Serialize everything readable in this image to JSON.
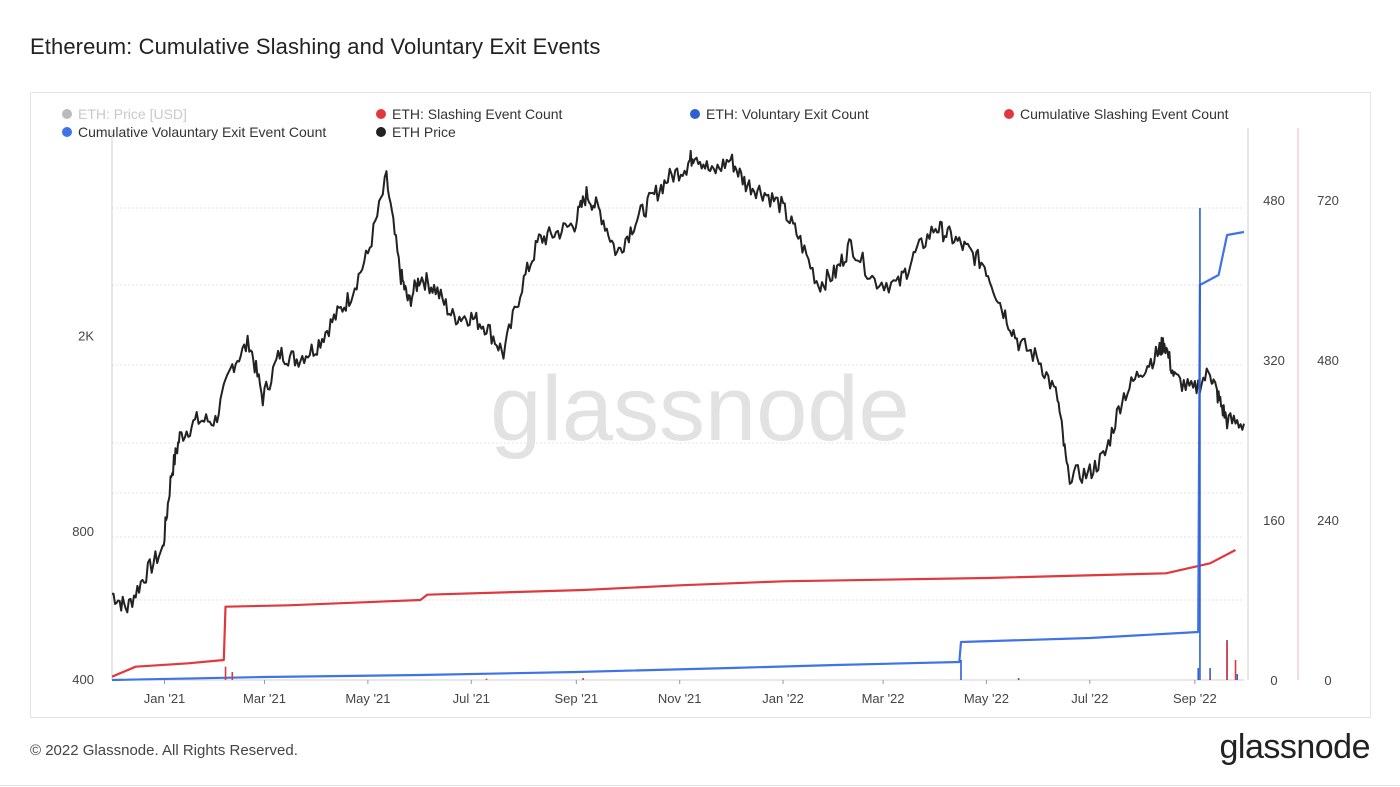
{
  "title": "Ethereum: Cumulative Slashing and Voluntary Exit Events",
  "footer": {
    "copyright": "© 2022 Glassnode. All Rights Reserved.",
    "logo": "glassnode"
  },
  "watermark": "glassnode",
  "legend": [
    {
      "label": "ETH: Price [USD]",
      "color": "#555555",
      "muted": true
    },
    {
      "label": "ETH: Slashing Event Count",
      "color": "#e0383e"
    },
    {
      "label": "ETH: Voluntary Exit Count",
      "color": "#2f5fd0"
    },
    {
      "label": "Cumulative Slashing Event Count",
      "color": "#e0383e"
    },
    {
      "label": "Cumulative Volauntary Exit Event Count",
      "color": "#3f73e8"
    },
    {
      "label": "ETH Price",
      "color": "#222222"
    }
  ],
  "chart_data": {
    "type": "line",
    "title": "Ethereum: Cumulative Slashing and Voluntary Exit Events",
    "x_ticks": [
      "Jan '21",
      "Mar '21",
      "May '21",
      "Jul '21",
      "Sep '21",
      "Nov '21",
      "Jan '22",
      "Mar '22",
      "May '22",
      "Jul '22",
      "Sep '22"
    ],
    "x_range": [
      "2020-12-01",
      "2022-09-30"
    ],
    "y_left": {
      "label": "",
      "scale": "log",
      "ticks": [
        400,
        800,
        "2K"
      ],
      "range": [
        400,
        4800
      ]
    },
    "y_right_1": {
      "label": "",
      "ticks": [
        0,
        160,
        320,
        480
      ],
      "range": [
        0,
        530
      ]
    },
    "y_right_2": {
      "label": "",
      "ticks": [
        0,
        240,
        480,
        720
      ],
      "range": [
        0,
        795
      ]
    },
    "grid": true,
    "legend_position": "top",
    "series": [
      {
        "name": "ETH Price",
        "color": "#222222",
        "axis": "left",
        "points": [
          [
            "2020-12-01",
            600
          ],
          [
            "2020-12-10",
            560
          ],
          [
            "2020-12-20",
            650
          ],
          [
            "2020-12-31",
            740
          ],
          [
            "2021-01-05",
            1050
          ],
          [
            "2021-01-10",
            1250
          ],
          [
            "2021-01-20",
            1350
          ],
          [
            "2021-01-31",
            1350
          ],
          [
            "2021-02-10",
            1750
          ],
          [
            "2021-02-20",
            1950
          ],
          [
            "2021-02-28",
            1500
          ],
          [
            "2021-03-10",
            1850
          ],
          [
            "2021-03-20",
            1800
          ],
          [
            "2021-03-31",
            1900
          ],
          [
            "2021-04-10",
            2150
          ],
          [
            "2021-04-20",
            2400
          ],
          [
            "2021-05-01",
            2950
          ],
          [
            "2021-05-12",
            4200
          ],
          [
            "2021-05-20",
            2700
          ],
          [
            "2021-05-25",
            2350
          ],
          [
            "2021-06-01",
            2650
          ],
          [
            "2021-06-10",
            2500
          ],
          [
            "2021-06-20",
            2200
          ],
          [
            "2021-06-30",
            2200
          ],
          [
            "2021-07-10",
            2100
          ],
          [
            "2021-07-20",
            1850
          ],
          [
            "2021-07-31",
            2550
          ],
          [
            "2021-08-10",
            3150
          ],
          [
            "2021-08-20",
            3250
          ],
          [
            "2021-08-31",
            3400
          ],
          [
            "2021-09-07",
            3900
          ],
          [
            "2021-09-15",
            3600
          ],
          [
            "2021-09-25",
            2950
          ],
          [
            "2021-10-05",
            3400
          ],
          [
            "2021-10-15",
            3800
          ],
          [
            "2021-10-25",
            4200
          ],
          [
            "2021-11-05",
            4450
          ],
          [
            "2021-11-10",
            4750
          ],
          [
            "2021-11-20",
            4300
          ],
          [
            "2021-12-01",
            4600
          ],
          [
            "2021-12-10",
            4100
          ],
          [
            "2021-12-20",
            3950
          ],
          [
            "2021-12-31",
            3700
          ],
          [
            "2022-01-10",
            3200
          ],
          [
            "2022-01-22",
            2550
          ],
          [
            "2022-02-01",
            2700
          ],
          [
            "2022-02-10",
            3100
          ],
          [
            "2022-02-24",
            2600
          ],
          [
            "2022-03-10",
            2550
          ],
          [
            "2022-03-20",
            2950
          ],
          [
            "2022-04-01",
            3350
          ],
          [
            "2022-04-10",
            3200
          ],
          [
            "2022-04-20",
            3000
          ],
          [
            "2022-04-30",
            2800
          ],
          [
            "2022-05-10",
            2300
          ],
          [
            "2022-05-20",
            1950
          ],
          [
            "2022-06-01",
            1800
          ],
          [
            "2022-06-12",
            1500
          ],
          [
            "2022-06-18",
            1050
          ],
          [
            "2022-06-30",
            1050
          ],
          [
            "2022-07-10",
            1150
          ],
          [
            "2022-07-20",
            1500
          ],
          [
            "2022-07-31",
            1700
          ],
          [
            "2022-08-10",
            1850
          ],
          [
            "2022-08-14",
            1950
          ],
          [
            "2022-08-20",
            1650
          ],
          [
            "2022-08-31",
            1550
          ],
          [
            "2022-09-10",
            1700
          ],
          [
            "2022-09-15",
            1500
          ],
          [
            "2022-09-20",
            1350
          ],
          [
            "2022-09-30",
            1330
          ]
        ]
      },
      {
        "name": "Cumulative Slashing Event Count",
        "color": "#e0383e",
        "axis": "right_2",
        "points": [
          [
            "2020-12-01",
            5
          ],
          [
            "2020-12-15",
            20
          ],
          [
            "2021-01-15",
            25
          ],
          [
            "2021-02-05",
            30
          ],
          [
            "2021-02-06",
            110
          ],
          [
            "2021-03-15",
            112
          ],
          [
            "2021-06-01",
            120
          ],
          [
            "2021-06-05",
            128
          ],
          [
            "2021-09-05",
            135
          ],
          [
            "2021-11-01",
            142
          ],
          [
            "2022-01-01",
            148
          ],
          [
            "2022-05-01",
            153
          ],
          [
            "2022-08-15",
            160
          ],
          [
            "2022-09-10",
            175
          ],
          [
            "2022-09-25",
            195
          ]
        ]
      },
      {
        "name": "Cumulative Volauntary Exit Event Count",
        "color": "#3f73e8",
        "axis": "right_1",
        "points": [
          [
            "2020-12-01",
            0
          ],
          [
            "2021-03-01",
            3
          ],
          [
            "2021-06-01",
            5
          ],
          [
            "2021-09-01",
            8
          ],
          [
            "2021-12-01",
            12
          ],
          [
            "2022-02-01",
            15
          ],
          [
            "2022-04-15",
            18
          ],
          [
            "2022-04-16",
            38
          ],
          [
            "2022-07-01",
            42
          ],
          [
            "2022-09-03",
            48
          ],
          [
            "2022-09-04",
            395
          ],
          [
            "2022-09-15",
            405
          ],
          [
            "2022-09-20",
            445
          ],
          [
            "2022-09-30",
            448
          ]
        ]
      },
      {
        "name": "ETH: Voluntary Exit Count",
        "color": "#2f5fd0",
        "axis": "right_1",
        "points": [
          [
            "2022-04-16",
            20
          ],
          [
            "2022-05-20",
            2
          ],
          [
            "2022-09-03",
            12
          ],
          [
            "2022-09-04",
            472
          ],
          [
            "2022-09-10",
            12
          ],
          [
            "2022-09-20",
            40
          ],
          [
            "2022-09-26",
            6
          ]
        ]
      },
      {
        "name": "ETH: Slashing Event Count",
        "color": "#e0383e",
        "axis": "right_2",
        "points": [
          [
            "2021-02-06",
            20
          ],
          [
            "2021-02-10",
            12
          ],
          [
            "2021-07-10",
            2
          ],
          [
            "2021-09-05",
            3
          ],
          [
            "2022-09-10",
            3
          ],
          [
            "2022-09-20",
            58
          ],
          [
            "2022-09-25",
            30
          ]
        ]
      }
    ]
  }
}
